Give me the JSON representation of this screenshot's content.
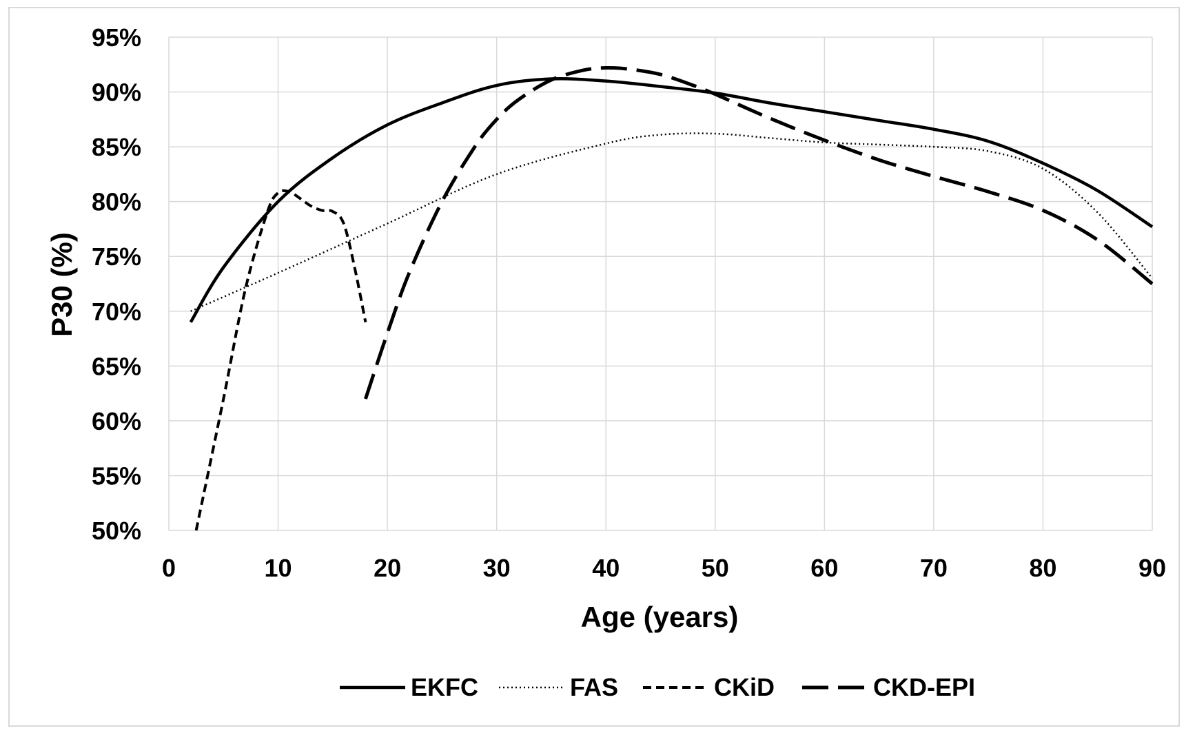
{
  "chart_data": {
    "type": "line",
    "xlabel": "Age (years)",
    "ylabel": "P30 (%)",
    "xlim": [
      0,
      90
    ],
    "ylim": [
      50,
      95
    ],
    "x_ticks": [
      0,
      10,
      20,
      30,
      40,
      50,
      60,
      70,
      80,
      90
    ],
    "y_ticks": [
      50,
      55,
      60,
      65,
      70,
      75,
      80,
      85,
      90,
      95
    ],
    "x_tick_labels": [
      "0",
      "10",
      "20",
      "30",
      "40",
      "50",
      "60",
      "70",
      "80",
      "90"
    ],
    "y_tick_labels": [
      "50%",
      "55%",
      "60%",
      "65%",
      "70%",
      "75%",
      "80%",
      "85%",
      "90%",
      "95%"
    ],
    "grid": true,
    "legend_position": "bottom",
    "series": [
      {
        "name": "EKFC",
        "style": "solid",
        "color": "#000000",
        "x": [
          2,
          5,
          10,
          15,
          20,
          25,
          30,
          35,
          40,
          45,
          50,
          55,
          60,
          65,
          70,
          75,
          80,
          85,
          90
        ],
        "y": [
          69,
          74,
          80,
          84,
          87,
          89,
          90.6,
          91.2,
          91,
          90.5,
          89.9,
          89,
          88.2,
          87.4,
          86.6,
          85.5,
          83.5,
          81,
          77.7
        ]
      },
      {
        "name": "FAS",
        "style": "dotted",
        "color": "#000000",
        "x": [
          2,
          10,
          20,
          30,
          40,
          45,
          50,
          55,
          60,
          65,
          70,
          75,
          80,
          85,
          90
        ],
        "y": [
          70,
          73.5,
          78,
          82.5,
          85.3,
          86.1,
          86.2,
          85.8,
          85.4,
          85.2,
          85,
          84.6,
          83,
          79,
          73
        ]
      },
      {
        "name": "CKiD",
        "style": "short-dash",
        "color": "#000000",
        "x": [
          2.5,
          5,
          7,
          9,
          10,
          11,
          12,
          13,
          14,
          15,
          16,
          17,
          18
        ],
        "y": [
          50,
          62,
          72,
          79,
          80.8,
          80.9,
          80.3,
          79.6,
          79.2,
          79.1,
          78,
          74,
          69
        ]
      },
      {
        "name": "CKD-EPI",
        "style": "long-dash",
        "color": "#000000",
        "x": [
          18,
          20,
          22,
          25,
          28,
          30,
          32,
          35,
          38,
          40,
          42,
          45,
          48,
          50,
          55,
          60,
          65,
          70,
          75,
          80,
          85,
          90
        ],
        "y": [
          62,
          68,
          73.5,
          80,
          85,
          87.5,
          89.3,
          91.1,
          92,
          92.2,
          92.1,
          91.6,
          90.6,
          89.8,
          87.6,
          85.6,
          83.8,
          82.3,
          80.9,
          79.2,
          76.5,
          72.5
        ]
      }
    ]
  }
}
